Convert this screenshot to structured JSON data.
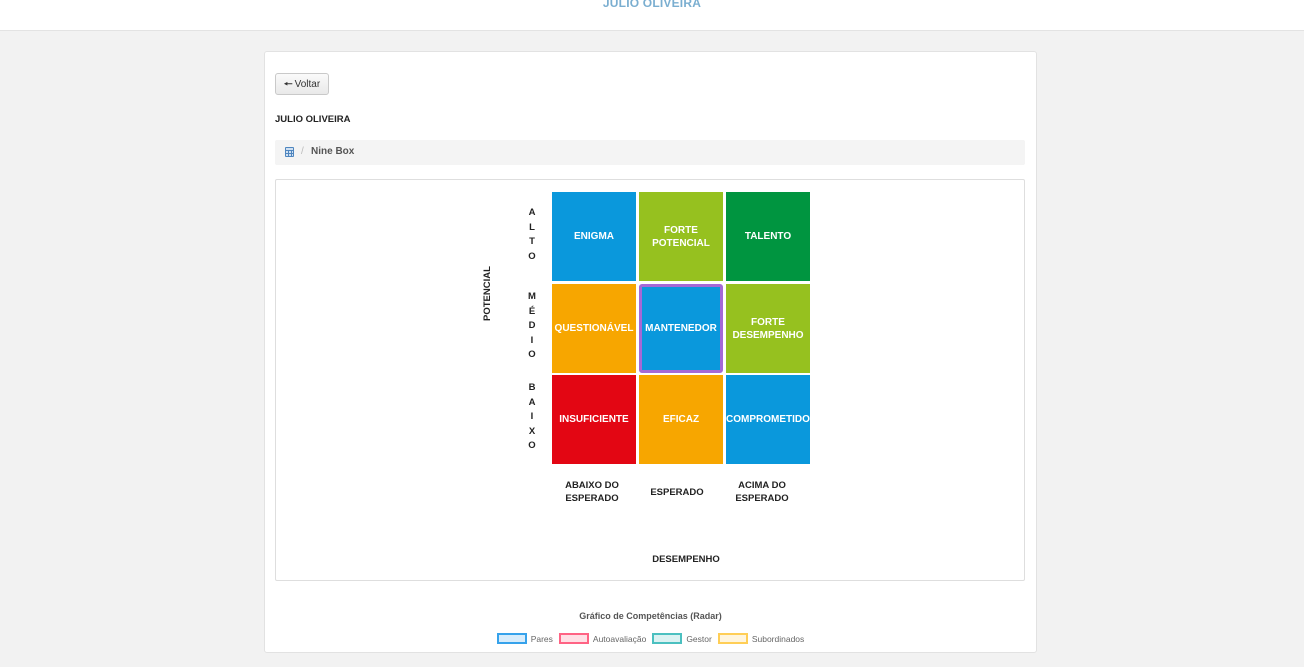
{
  "header": {
    "title": "JULIO OLIVEIRA"
  },
  "page": {
    "back_label": "Voltar",
    "person_name": "JULIO OLIVEIRA",
    "breadcrumb": {
      "icon": "calculator-icon",
      "separator": "/",
      "current": "Nine Box"
    }
  },
  "ninebox": {
    "y_axis_title": "POTENCIAL",
    "x_axis_title": "DESEMPENHO",
    "row_labels": [
      "ALTO",
      "MÉDIO",
      "BAIXO"
    ],
    "column_labels": [
      "ABAIXO DO ESPERADO",
      "ESPERADO",
      "ACIMA DO ESPERADO"
    ],
    "cells": [
      {
        "label": "ENIGMA",
        "color": "#0a98dc"
      },
      {
        "label": "FORTE POTENCIAL",
        "color": "#96c11f"
      },
      {
        "label": "TALENTO",
        "color": "#009540"
      },
      {
        "label": "QUESTIONÁVEL",
        "color": "#f7a600"
      },
      {
        "label": "MANTENEDOR",
        "color": "#0a98dc",
        "selected": true,
        "highlight_color": "#a569d6"
      },
      {
        "label": "FORTE DESEMPENHO",
        "color": "#96c11f"
      },
      {
        "label": "INSUFICIENTE",
        "color": "#e30613"
      },
      {
        "label": "EFICAZ",
        "color": "#f7a600"
      },
      {
        "label": "COMPROMETIDO",
        "color": "#0a98dc"
      }
    ]
  },
  "radar": {
    "title": "Gráfico de Competências (Radar)",
    "legend": [
      {
        "label": "Pares",
        "color": "#36a2eb"
      },
      {
        "label": "Autoavaliação",
        "color": "#ff6384"
      },
      {
        "label": "Gestor",
        "color": "#4bc0c0"
      },
      {
        "label": "Subordinados",
        "color": "#ffce56"
      }
    ]
  }
}
